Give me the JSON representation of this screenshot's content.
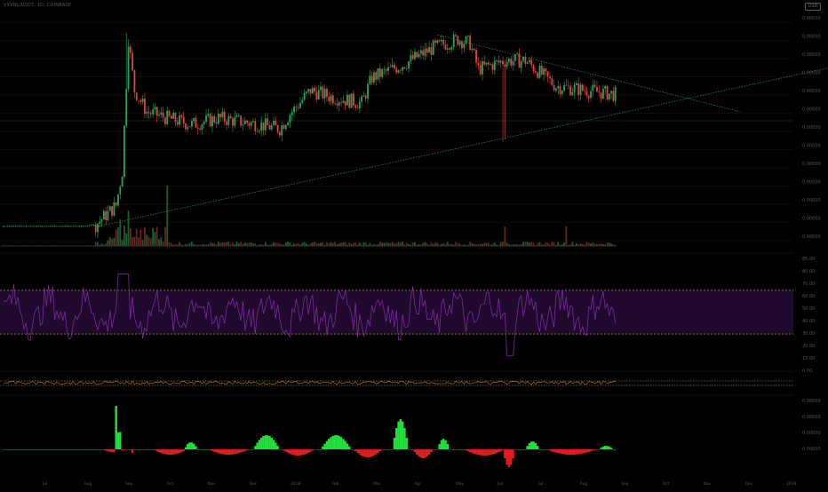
{
  "symbol_label": "VXVNL/USDT, 1D, COINBASE",
  "badge_label": "USD",
  "colors": {
    "up": "#26a65b",
    "down": "#e2433d",
    "hist_up": "#22e03a",
    "hist_down": "#e01e1e",
    "trend_upper": "#1f9d55",
    "trend_lower": "#1f9d55",
    "rsi_line": "#8a2bb0",
    "rsi_band": "#1f0a2e",
    "rsi_level": "#c8b34a",
    "osc_line": "#c87f2a",
    "axis_text": "#555555",
    "grid": "#171717"
  },
  "price_axis_ticks": [
    "0.00000",
    "0.00000",
    "0.00000",
    "0.00000",
    "0.00000",
    "0.00000",
    "0.00000",
    "0.00000",
    "0.00000",
    "0.00000",
    "0.00000",
    "0.00000",
    "0.00000"
  ],
  "rsi_axis_ticks": [
    "85.00",
    "80.00",
    "70.00",
    "60.00",
    "50.00",
    "40.00",
    "30.00",
    "20.00",
    "15.00",
    "0.00"
  ],
  "macd_axis_ticks": [
    "0.00000",
    "0.00000",
    "0.00000",
    "0.00000"
  ],
  "time_axis_ticks": [
    "Jul",
    "Aug",
    "Sep",
    "Oct",
    "Nov",
    "Dec",
    "2018",
    "Feb",
    "Mar",
    "Apr",
    "May",
    "Jun",
    "Jul",
    "Aug",
    "Sep",
    "Oct",
    "Nov",
    "Dec",
    "2019",
    "Feb"
  ],
  "chart_data": {
    "type": "candlestick",
    "panes": [
      "price",
      "volume",
      "rsi",
      "oscillator",
      "macd-histogram"
    ],
    "bars": 300,
    "price_range": [
      0,
      100
    ],
    "price_path_nodes": [
      [
        0,
        4
      ],
      [
        40,
        4
      ],
      [
        45,
        5
      ],
      [
        55,
        14
      ],
      [
        58,
        30
      ],
      [
        61,
        92
      ],
      [
        64,
        68
      ],
      [
        70,
        58
      ],
      [
        80,
        55
      ],
      [
        92,
        52
      ],
      [
        105,
        55
      ],
      [
        125,
        52
      ],
      [
        135,
        50
      ],
      [
        140,
        57
      ],
      [
        150,
        68
      ],
      [
        160,
        65
      ],
      [
        175,
        62
      ],
      [
        180,
        74
      ],
      [
        195,
        80
      ],
      [
        210,
        88
      ],
      [
        222,
        92
      ],
      [
        228,
        90
      ],
      [
        232,
        78
      ],
      [
        245,
        82
      ],
      [
        255,
        82
      ],
      [
        270,
        70
      ],
      [
        285,
        68
      ],
      [
        300,
        66
      ]
    ],
    "trendlines": [
      {
        "kind": "upper",
        "start": [
          212,
          94
        ],
        "end": [
          360,
          58
        ]
      },
      {
        "kind": "lower",
        "start": [
          45,
          4
        ],
        "end": [
          410,
          80
        ]
      }
    ],
    "rsi_levels": [
      70,
      30
    ],
    "rsi_range": [
      0,
      100
    ],
    "macd_hist_peak": 1.0,
    "macd_hist_trough": -0.5
  }
}
